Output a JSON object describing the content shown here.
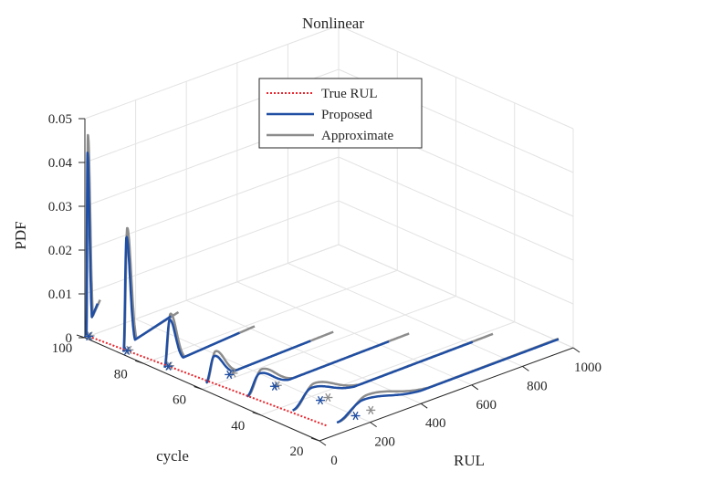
{
  "chart_data": {
    "type": "line",
    "title": "Nonlinear",
    "xlabel": "RUL",
    "ylabel": "cycle",
    "zlabel": "PDF",
    "xlim": [
      0,
      1000
    ],
    "ylim": [
      20,
      100
    ],
    "zlim": [
      0,
      0.05
    ],
    "xticks": [
      "0",
      "200",
      "400",
      "600",
      "800",
      "1000"
    ],
    "yticks": [
      "20",
      "40",
      "60",
      "80",
      "100"
    ],
    "zticks": [
      "0",
      "0.01",
      "0.02",
      "0.03",
      "0.04",
      "0.05"
    ],
    "grid": true,
    "legend_position": "top-center",
    "cycles": [
      100,
      88,
      75,
      62,
      50,
      37,
      25
    ],
    "true_rul": [
      {
        "cycle": 100,
        "rul": 15
      },
      {
        "cycle": 88,
        "rul": 27
      },
      {
        "cycle": 75,
        "rul": 40
      },
      {
        "cycle": 62,
        "rul": 53
      },
      {
        "cycle": 50,
        "rul": 65
      },
      {
        "cycle": 37,
        "rul": 78
      },
      {
        "cycle": 25,
        "rul": 90
      }
    ],
    "series": [
      {
        "name": "True RUL",
        "color": "#e8262e",
        "style": "dotted"
      },
      {
        "name": "Proposed",
        "color": "#1f4ea3",
        "marker_rul": [
          15,
          27,
          40,
          130,
          170,
          200,
          200
        ],
        "curves": [
          {
            "cycle": 100,
            "peak_rul": 10,
            "peak": 0.042,
            "tail_end": 50
          },
          {
            "cycle": 88,
            "peak_rul": 25,
            "peak": 0.026,
            "tail_end": 200
          },
          {
            "cycle": 75,
            "peak_rul": 45,
            "peak": 0.0105,
            "tail_end": 320
          },
          {
            "cycle": 62,
            "peak_rul": 70,
            "peak": 0.0055,
            "tail_end": 450
          },
          {
            "cycle": 50,
            "peak_rul": 110,
            "peak": 0.0042,
            "tail_end": 620
          },
          {
            "cycle": 37,
            "peak_rul": 165,
            "peak": 0.0036,
            "tail_end": 800
          },
          {
            "cycle": 25,
            "peak_rul": 230,
            "peak": 0.003,
            "tail_end": 1000
          }
        ]
      },
      {
        "name": "Approximate",
        "color": "#8c8c8c",
        "marker_rul": [
          20,
          35,
          45,
          145,
          180,
          230,
          260
        ],
        "curves": [
          {
            "cycle": 100,
            "peak_rul": 12,
            "peak": 0.046,
            "tail_end": 60
          },
          {
            "cycle": 88,
            "peak_rul": 28,
            "peak": 0.028,
            "tail_end": 230
          },
          {
            "cycle": 75,
            "peak_rul": 48,
            "peak": 0.0118,
            "tail_end": 380
          },
          {
            "cycle": 62,
            "peak_rul": 75,
            "peak": 0.0065,
            "tail_end": 540
          },
          {
            "cycle": 50,
            "peak_rul": 118,
            "peak": 0.005,
            "tail_end": 700
          },
          {
            "cycle": 37,
            "peak_rul": 175,
            "peak": 0.0044,
            "tail_end": 880
          },
          {
            "cycle": 25,
            "peak_rul": 245,
            "peak": 0.0038,
            "tail_end": 1000
          }
        ]
      }
    ]
  }
}
